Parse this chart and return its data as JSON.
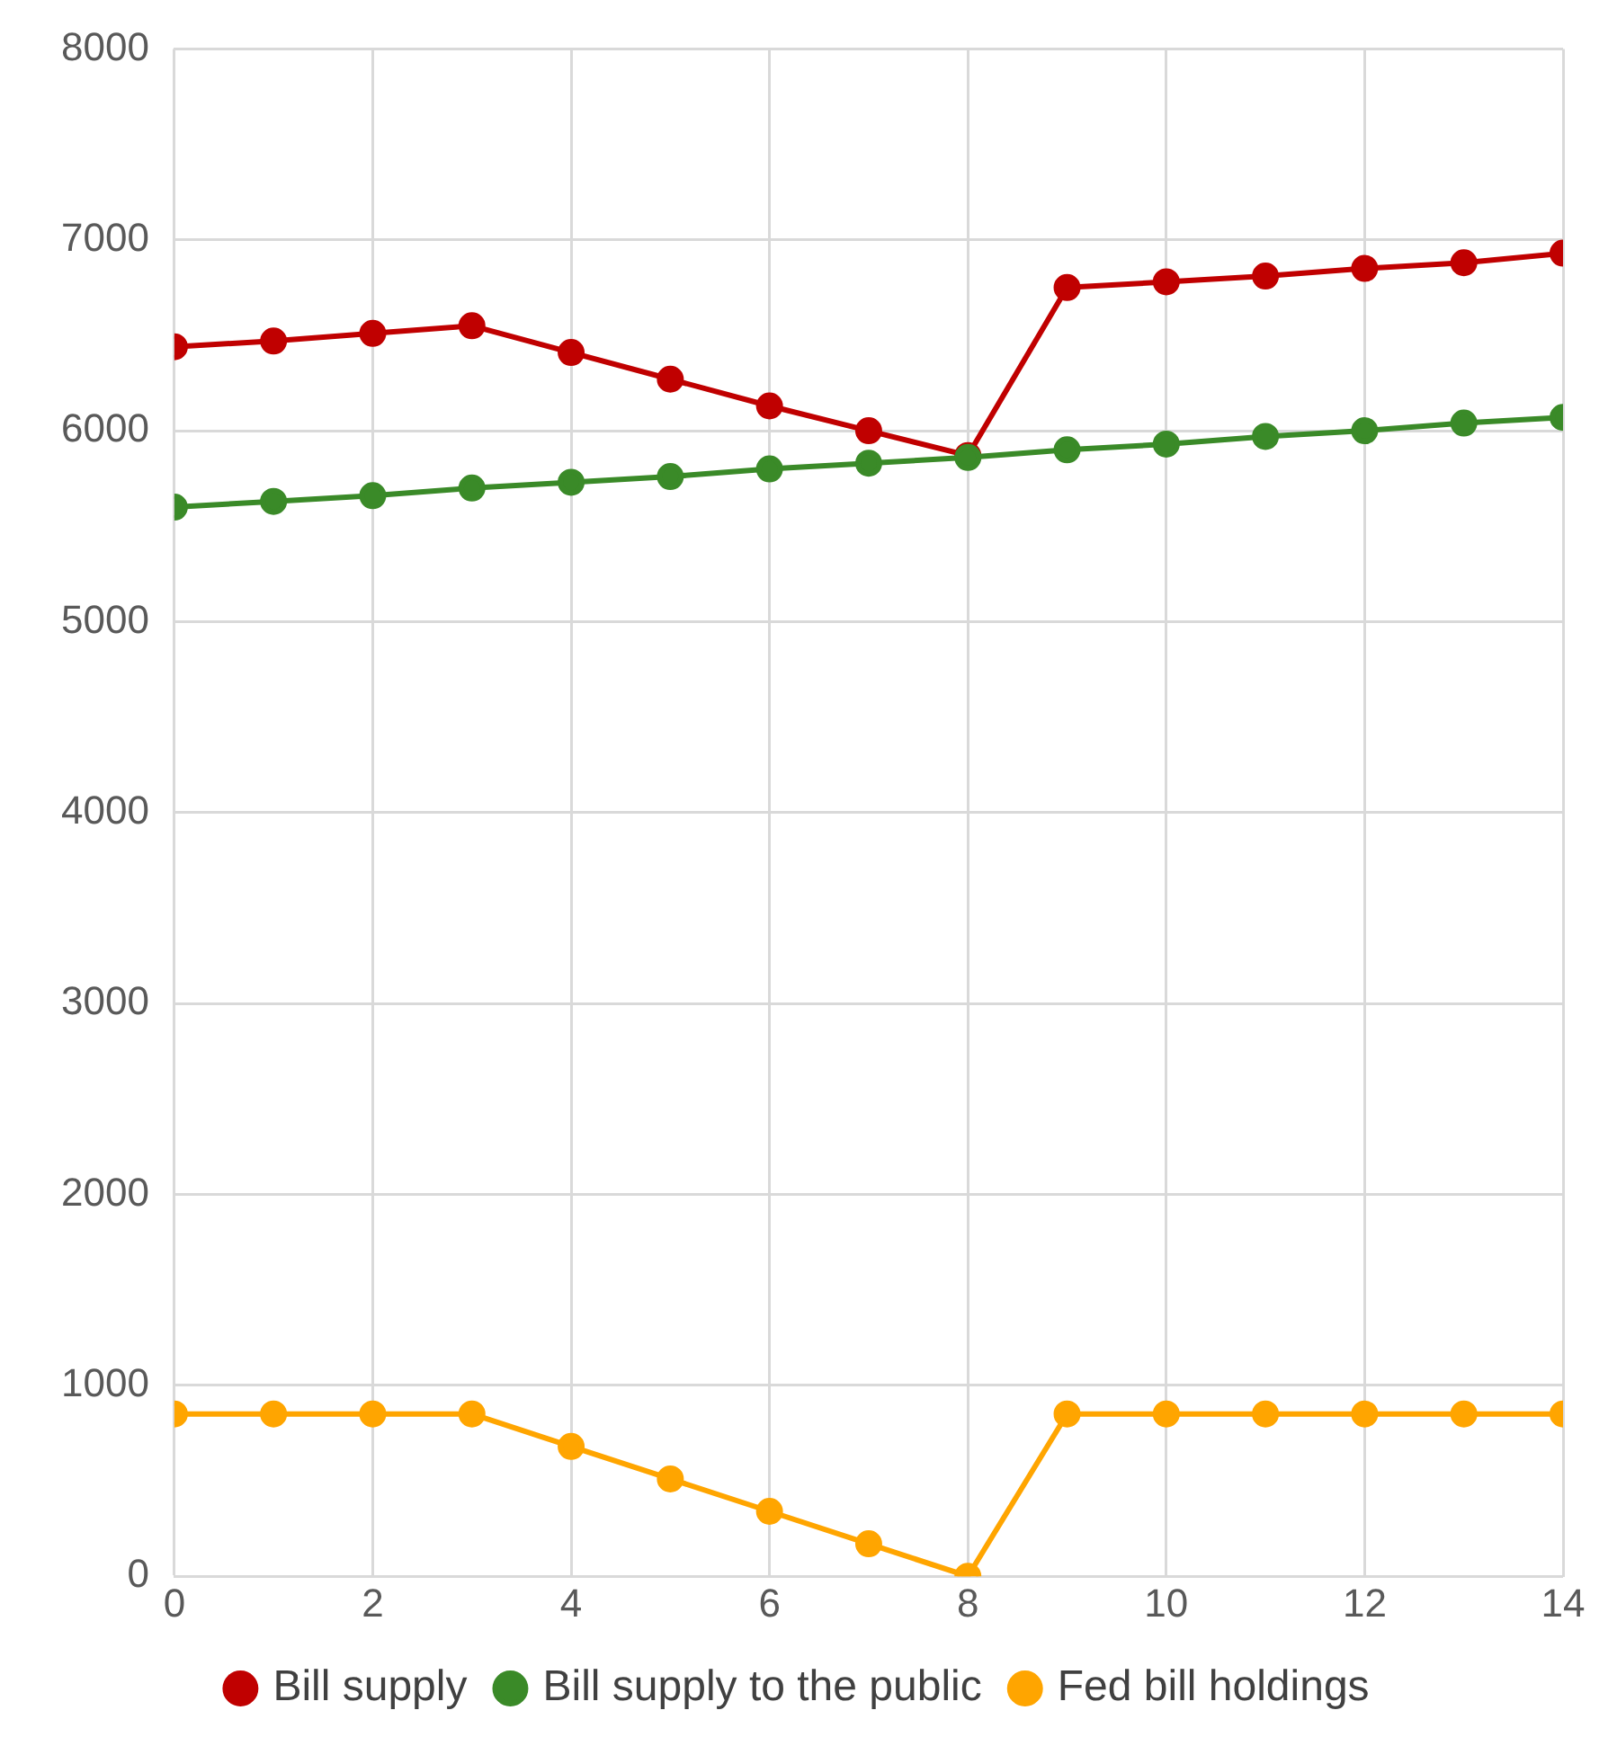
{
  "chart_data": {
    "type": "line",
    "x": [
      0,
      1,
      2,
      3,
      4,
      5,
      6,
      7,
      8,
      9,
      10,
      11,
      12,
      13,
      14
    ],
    "series": [
      {
        "name": "Bill supply",
        "color": "#c00000",
        "values": [
          6440,
          6470,
          6510,
          6550,
          6410,
          6270,
          6130,
          6000,
          5870,
          6750,
          6780,
          6810,
          6850,
          6880,
          6930
        ]
      },
      {
        "name": "Bill supply to the public",
        "color": "#3a8a28",
        "values": [
          5600,
          5630,
          5660,
          5700,
          5730,
          5760,
          5800,
          5830,
          5860,
          5900,
          5930,
          5970,
          6000,
          6040,
          6070
        ]
      },
      {
        "name": "Fed bill holdings",
        "color": "#ffa500",
        "values": [
          850,
          850,
          850,
          850,
          680,
          510,
          340,
          170,
          0,
          850,
          850,
          850,
          850,
          850,
          850
        ]
      }
    ],
    "xlim": [
      0,
      14
    ],
    "xticks": [
      0,
      2,
      4,
      6,
      8,
      10,
      12,
      14
    ],
    "ylim": [
      0,
      8000
    ],
    "yticks": [
      0,
      1000,
      2000,
      3000,
      4000,
      5000,
      6000,
      7000,
      8000
    ],
    "grid": true,
    "legend": "bottom",
    "marker": "circle",
    "line_style": "solid"
  }
}
